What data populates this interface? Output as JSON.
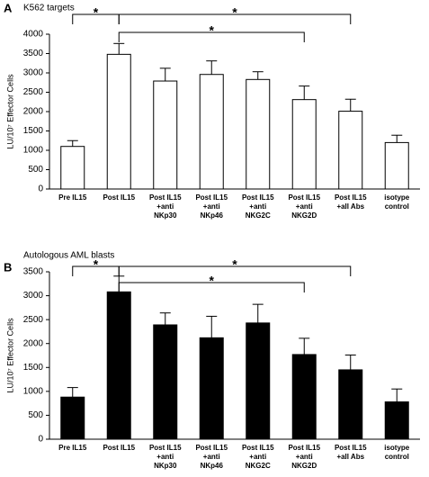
{
  "chart_data": [
    {
      "type": "bar",
      "panel_label": "A",
      "title": "K562 targets",
      "y_label": "LU/10⁷ Effector Cells",
      "categories": [
        "Pre IL15",
        "Post IL15",
        "Post IL15\n+anti\nNKp30",
        "Post IL15\n+anti\nNKp46",
        "Post IL15\n+anti\nNKG2C",
        "Post IL15\n+anti\nNKG2D",
        "Post IL15\n+all Abs",
        "isotype\ncontrol"
      ],
      "values": [
        1100,
        3480,
        2790,
        2960,
        2830,
        2310,
        2010,
        1200
      ],
      "errors": [
        150,
        280,
        330,
        350,
        200,
        350,
        310,
        190
      ],
      "color": "#ffffff",
      "edge_color": "#000000",
      "ylim": [
        0,
        4000
      ],
      "yticks": [
        0,
        500,
        1000,
        1500,
        2000,
        2500,
        3000,
        3500,
        4000
      ],
      "annotations": [
        "*",
        "*",
        "*"
      ]
    },
    {
      "type": "bar",
      "panel_label": "B",
      "title": "Autologous AML blasts",
      "y_label": "LU/10⁷ Effector Cells",
      "categories": [
        "Pre IL15",
        "Post IL15",
        "Post IL15\n+anti\nNKp30",
        "Post IL15\n+anti\nNKp46",
        "Post IL15\n+anti\nNKG2C",
        "Post IL15\n+anti\nNKG2D",
        "Post IL15\n+all Abs",
        "isotype\ncontrol"
      ],
      "values": [
        880,
        3080,
        2390,
        2120,
        2430,
        1770,
        1450,
        780
      ],
      "errors": [
        200,
        330,
        250,
        450,
        390,
        340,
        310,
        270
      ],
      "color": "#000000",
      "edge_color": "#000000",
      "ylim": [
        0,
        3500
      ],
      "yticks": [
        0,
        500,
        1000,
        1500,
        2000,
        2500,
        3000,
        3500
      ],
      "annotations": [
        "*",
        "*",
        "*"
      ]
    }
  ]
}
